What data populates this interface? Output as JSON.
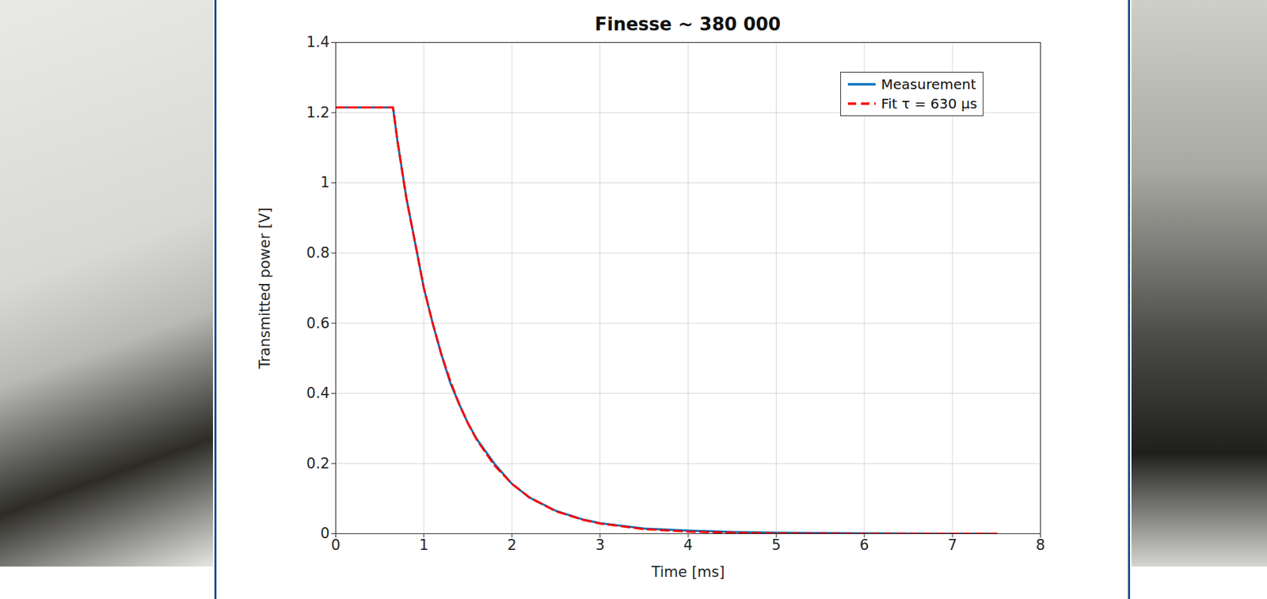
{
  "chart_data": {
    "type": "line",
    "title": "Finesse ~ 380 000",
    "x_label": "Time [ms]",
    "y_label": "Transmitted power [V]",
    "x": [
      0,
      0.65,
      0.7,
      0.8,
      0.9,
      1.0,
      1.1,
      1.2,
      1.3,
      1.4,
      1.5,
      1.6,
      1.8,
      2.0,
      2.2,
      2.5,
      2.8,
      3.0,
      3.5,
      4.0,
      4.5,
      5.0,
      6.0,
      7.0,
      7.5
    ],
    "series": [
      {
        "name": "Measurement",
        "color": "#0072bd",
        "line_style": "solid",
        "values": [
          1.215,
          1.215,
          1.12,
          0.96,
          0.83,
          0.7,
          0.6,
          0.51,
          0.43,
          0.37,
          0.315,
          0.27,
          0.2,
          0.142,
          0.103,
          0.065,
          0.041,
          0.03,
          0.015,
          0.009,
          0.005,
          0.003,
          0.001,
          0,
          0
        ]
      },
      {
        "name": "Fit τ = 630 μs",
        "color": "#ff0000",
        "line_style": "dashed",
        "values": [
          1.215,
          1.215,
          1.12,
          0.957,
          0.83,
          0.7,
          0.6,
          0.51,
          0.435,
          0.37,
          0.315,
          0.268,
          0.195,
          0.142,
          0.103,
          0.064,
          0.04,
          0.029,
          0.013,
          0.006,
          0.003,
          0.001,
          0,
          0,
          0
        ]
      }
    ],
    "xlim": [
      0,
      8
    ],
    "ylim": [
      0,
      1.4
    ],
    "xticks": [
      0,
      1,
      2,
      3,
      4,
      5,
      6,
      7,
      8
    ],
    "yticks": [
      0,
      0.2,
      0.4,
      0.6,
      0.8,
      1,
      1.2,
      1.4
    ],
    "grid": true,
    "legend": "upper right"
  }
}
